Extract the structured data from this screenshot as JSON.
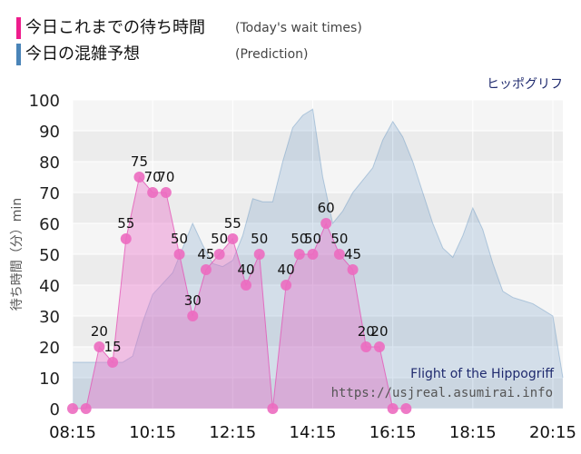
{
  "legend": {
    "actual_label": "今日これまでの待ち時間",
    "actual_sub": "(Today's wait times)",
    "prediction_label": "今日の混雑予想",
    "prediction_sub": "(Prediction)",
    "actual_color": "#ee1c8c",
    "prediction_color": "#4a84b8"
  },
  "chart_data": {
    "type": "area",
    "title": "ヒッポグリフ",
    "ylabel": "待ち時間（分）min",
    "xlabel": "",
    "ylim": [
      0,
      100
    ],
    "yticks": [
      0,
      10,
      20,
      30,
      40,
      50,
      60,
      70,
      80,
      90,
      100
    ],
    "xlim": [
      "08:15",
      "20:30"
    ],
    "xticks": [
      "08:15",
      "10:15",
      "12:15",
      "14:15",
      "16:15",
      "18:15",
      "20:15"
    ],
    "grid": true,
    "series": [
      {
        "name": "今日の混雑予想",
        "color": "#4a84b8",
        "points": [
          [
            "08:15",
            15
          ],
          [
            "08:45",
            15
          ],
          [
            "09:15",
            15
          ],
          [
            "09:30",
            15
          ],
          [
            "09:45",
            17
          ],
          [
            "10:00",
            28
          ],
          [
            "10:15",
            37
          ],
          [
            "10:45",
            44
          ],
          [
            "11:00",
            52
          ],
          [
            "11:15",
            60
          ],
          [
            "11:30",
            53
          ],
          [
            "11:45",
            47
          ],
          [
            "12:00",
            46
          ],
          [
            "12:15",
            48
          ],
          [
            "12:30",
            56
          ],
          [
            "12:45",
            68
          ],
          [
            "13:00",
            67
          ],
          [
            "13:15",
            67
          ],
          [
            "13:30",
            80
          ],
          [
            "13:45",
            91
          ],
          [
            "14:00",
            95
          ],
          [
            "14:15",
            97
          ],
          [
            "14:30",
            75
          ],
          [
            "14:45",
            60
          ],
          [
            "15:00",
            64
          ],
          [
            "15:15",
            70
          ],
          [
            "15:30",
            74
          ],
          [
            "15:45",
            78
          ],
          [
            "16:00",
            87
          ],
          [
            "16:15",
            93
          ],
          [
            "16:30",
            88
          ],
          [
            "16:45",
            80
          ],
          [
            "17:00",
            70
          ],
          [
            "17:15",
            60
          ],
          [
            "17:30",
            52
          ],
          [
            "17:45",
            49
          ],
          [
            "18:00",
            56
          ],
          [
            "18:15",
            65
          ],
          [
            "18:30",
            58
          ],
          [
            "18:45",
            47
          ],
          [
            "19:00",
            38
          ],
          [
            "19:15",
            36
          ],
          [
            "19:30",
            35
          ],
          [
            "19:45",
            34
          ],
          [
            "20:00",
            32
          ],
          [
            "20:15",
            30
          ],
          [
            "20:30",
            10
          ]
        ]
      },
      {
        "name": "今日これまでの待ち時間",
        "color": "#ee1c8c",
        "points": [
          [
            "08:15",
            0
          ],
          [
            "08:35",
            0
          ],
          [
            "08:55",
            20
          ],
          [
            "09:15",
            15
          ],
          [
            "09:35",
            55
          ],
          [
            "09:55",
            75
          ],
          [
            "10:15",
            70
          ],
          [
            "10:35",
            70
          ],
          [
            "10:55",
            50
          ],
          [
            "11:15",
            30
          ],
          [
            "11:35",
            45
          ],
          [
            "11:55",
            50
          ],
          [
            "12:15",
            55
          ],
          [
            "12:35",
            40
          ],
          [
            "12:55",
            50
          ],
          [
            "13:15",
            0
          ],
          [
            "13:35",
            40
          ],
          [
            "13:55",
            50
          ],
          [
            "14:15",
            50
          ],
          [
            "14:35",
            60
          ],
          [
            "14:55",
            50
          ],
          [
            "15:15",
            45
          ],
          [
            "15:35",
            20
          ],
          [
            "15:55",
            20
          ],
          [
            "16:15",
            0
          ],
          [
            "16:35",
            0
          ]
        ]
      }
    ],
    "annotations": [
      "Flight of the Hippogriff",
      "https://usjreal.asumirai.info"
    ]
  }
}
